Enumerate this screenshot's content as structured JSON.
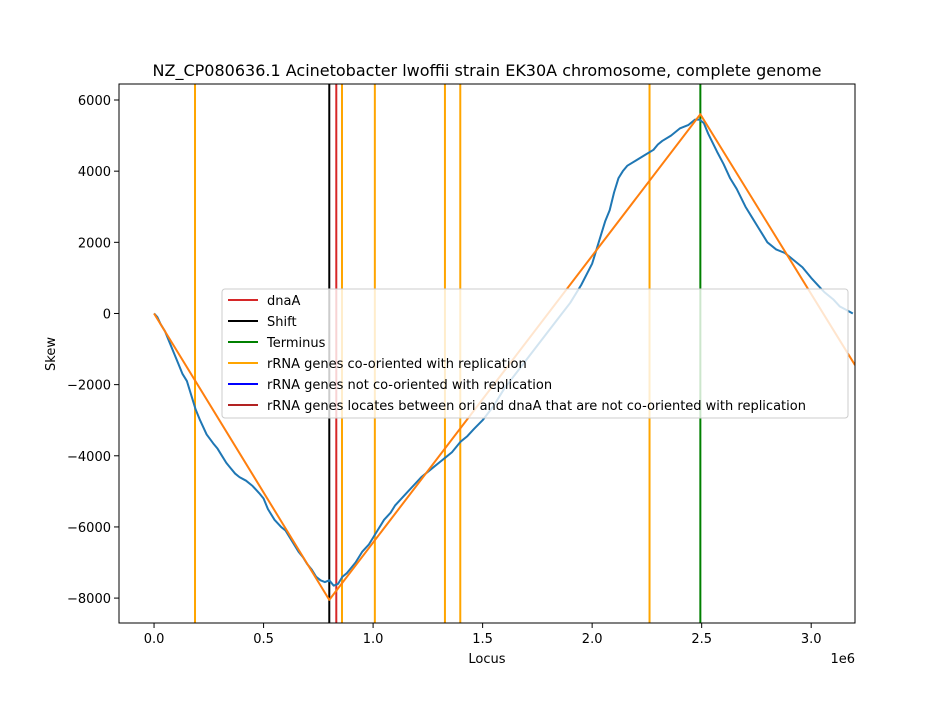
{
  "chart_data": {
    "type": "line",
    "title": "NZ_CP080636.1 Acinetobacter lwoffii strain EK30A chromosome, complete genome",
    "xlabel": "Locus",
    "ylabel": "Skew",
    "x_offset_label": "1e6",
    "xlim": [
      -0.16,
      3.2
    ],
    "ylim": [
      -8700,
      6450
    ],
    "x_ticks": [
      0.0,
      0.5,
      1.0,
      1.5,
      2.0,
      2.5,
      3.0
    ],
    "x_tick_labels": [
      "0.0",
      "0.5",
      "1.0",
      "1.5",
      "2.0",
      "2.5",
      "3.0"
    ],
    "y_ticks": [
      -8000,
      -6000,
      -4000,
      -2000,
      0,
      2000,
      4000,
      6000
    ],
    "y_tick_labels": [
      "−8000",
      "−6000",
      "−4000",
      "−2000",
      "0",
      "2000",
      "4000",
      "6000"
    ],
    "grid": false,
    "legend_position": "center",
    "legend": [
      {
        "label": "dnaA",
        "color": "#d62728"
      },
      {
        "label": "Shift",
        "color": "#000000"
      },
      {
        "label": "Terminus",
        "color": "#008000"
      },
      {
        "label": "rRNA genes co-oriented with replication",
        "color": "#ffa500"
      },
      {
        "label": "rRNA genes not co-oriented with replication",
        "color": "#0000ff"
      },
      {
        "label": "rRNA genes locates between ori and dnaA that are not co-oriented with replication",
        "color": "#b22222"
      }
    ],
    "vertical_lines": [
      {
        "series": "rRNA genes co-oriented with replication",
        "x": 0.187,
        "color": "#ffa500"
      },
      {
        "series": "rRNA genes co-oriented with replication",
        "x": 0.858,
        "color": "#ffa500"
      },
      {
        "series": "rRNA genes co-oriented with replication",
        "x": 1.008,
        "color": "#ffa500"
      },
      {
        "series": "rRNA genes co-oriented with replication",
        "x": 1.328,
        "color": "#ffa500"
      },
      {
        "series": "rRNA genes co-oriented with replication",
        "x": 1.398,
        "color": "#ffa500"
      },
      {
        "series": "rRNA genes co-oriented with replication",
        "x": 2.262,
        "color": "#ffa500"
      },
      {
        "series": "dnaA",
        "x": 0.832,
        "color": "#d62728"
      },
      {
        "series": "Shift",
        "x": 0.8,
        "color": "#000000"
      },
      {
        "series": "Terminus",
        "x": 2.494,
        "color": "#008000"
      }
    ],
    "series": [
      {
        "color": "#1f77b4",
        "x": [
          0,
          0.015,
          0.03,
          0.05,
          0.07,
          0.09,
          0.11,
          0.13,
          0.15,
          0.17,
          0.19,
          0.21,
          0.24,
          0.27,
          0.29,
          0.31,
          0.33,
          0.35,
          0.37,
          0.39,
          0.42,
          0.45,
          0.48,
          0.5,
          0.52,
          0.55,
          0.58,
          0.6,
          0.62,
          0.64,
          0.66,
          0.68,
          0.7,
          0.72,
          0.74,
          0.76,
          0.78,
          0.8,
          0.82,
          0.84,
          0.86,
          0.88,
          0.9,
          0.92,
          0.95,
          0.98,
          1.0,
          1.02,
          1.05,
          1.08,
          1.1,
          1.13,
          1.16,
          1.19,
          1.22,
          1.25,
          1.28,
          1.31,
          1.33,
          1.36,
          1.38,
          1.4,
          1.43,
          1.46,
          1.5,
          1.55,
          1.6,
          1.65,
          1.7,
          1.75,
          1.8,
          1.85,
          1.9,
          1.95,
          2.0,
          2.03,
          2.06,
          2.08,
          2.1,
          2.12,
          2.14,
          2.16,
          2.2,
          2.24,
          2.28,
          2.3,
          2.32,
          2.36,
          2.4,
          2.44,
          2.47,
          2.49,
          2.51,
          2.53,
          2.55,
          2.57,
          2.6,
          2.63,
          2.66,
          2.7,
          2.73,
          2.76,
          2.8,
          2.84,
          2.88,
          2.92,
          2.96,
          3.0,
          3.03,
          3.06,
          3.1,
          3.13,
          3.16,
          3.19
        ],
        "values": [
          0,
          -100,
          -300,
          -500,
          -800,
          -1100,
          -1400,
          -1700,
          -1900,
          -2300,
          -2700,
          -3000,
          -3400,
          -3650,
          -3800,
          -4000,
          -4200,
          -4350,
          -4500,
          -4600,
          -4700,
          -4850,
          -5050,
          -5200,
          -5500,
          -5800,
          -6000,
          -6100,
          -6300,
          -6500,
          -6700,
          -6850,
          -7050,
          -7200,
          -7400,
          -7500,
          -7550,
          -7500,
          -7650,
          -7600,
          -7400,
          -7300,
          -7150,
          -7000,
          -6700,
          -6500,
          -6300,
          -6100,
          -5800,
          -5600,
          -5400,
          -5200,
          -5000,
          -4800,
          -4600,
          -4450,
          -4300,
          -4150,
          -4050,
          -3900,
          -3750,
          -3600,
          -3450,
          -3250,
          -3000,
          -2600,
          -2100,
          -1700,
          -1300,
          -900,
          -500,
          -100,
          300,
          800,
          1400,
          2000,
          2600,
          2900,
          3400,
          3800,
          4000,
          4150,
          4300,
          4450,
          4600,
          4750,
          4850,
          5000,
          5200,
          5300,
          5450,
          5450,
          5350,
          5050,
          4800,
          4550,
          4200,
          3800,
          3500,
          3000,
          2700,
          2400,
          2000,
          1800,
          1700,
          1500,
          1300,
          1000,
          800,
          600,
          400,
          200,
          100,
          0
        ]
      },
      {
        "color": "#ff7f0e",
        "x": [
          0,
          0.8,
          2.494,
          3.2
        ],
        "values": [
          0,
          -8050,
          5600,
          -1450
        ]
      }
    ]
  }
}
